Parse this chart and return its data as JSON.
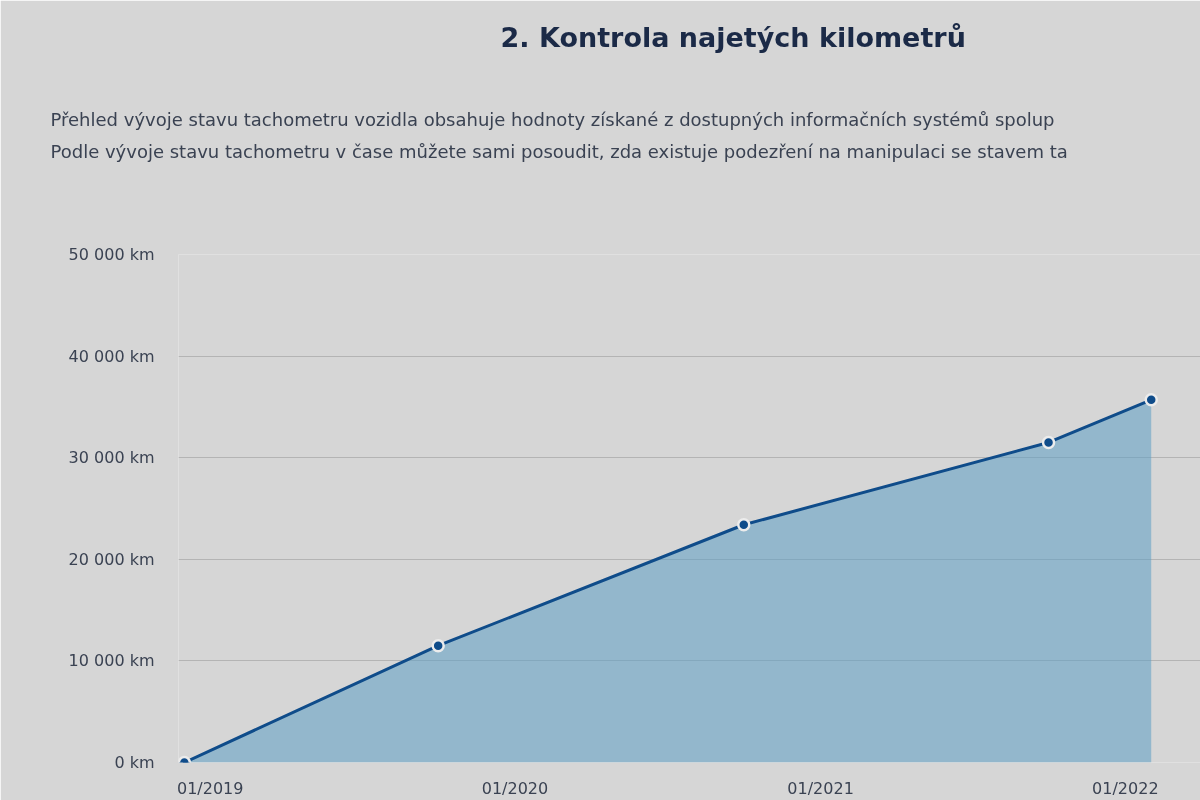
{
  "chart_data": {
    "type": "area",
    "title": "2. Kontrola najetých kilometrů",
    "subtitle": "Přehled vývoje stavu tachometru vozidla obsahuje hodnoty získané z dostupných informačních systémů spolup\nPodle vývoje stavu tachometru v čase můžete sami posoudit, zda existuje podezření na manipulaci se stavem ta",
    "x": [
      "2018-12",
      "2019-10",
      "2020-10",
      "2021-10",
      "2022-02"
    ],
    "series": [
      {
        "color": "#0f4c8a",
        "values": [
          0,
          11500,
          23400,
          31500,
          35700
        ]
      }
    ],
    "xlim": [
      "2018-11-24",
      "2022-04-01"
    ],
    "xticks": [
      {
        "value": "2019-01",
        "label": "01/2019"
      },
      {
        "value": "2020-01",
        "label": "01/2020"
      },
      {
        "value": "2021-01",
        "label": "01/2021"
      },
      {
        "value": "2022-01",
        "label": "01/2022"
      }
    ],
    "ylim": [
      0,
      50000
    ],
    "yticks": [
      {
        "value": 0,
        "label": "0 km"
      },
      {
        "value": 10000,
        "label": "10 000 km"
      },
      {
        "value": 20000,
        "label": "20 000 km"
      },
      {
        "value": 30000,
        "label": "30 000 km"
      },
      {
        "value": 40000,
        "label": "40 000 km"
      },
      {
        "value": 50000,
        "label": "50 000 km"
      }
    ],
    "grid": "y",
    "marker": "circle"
  }
}
